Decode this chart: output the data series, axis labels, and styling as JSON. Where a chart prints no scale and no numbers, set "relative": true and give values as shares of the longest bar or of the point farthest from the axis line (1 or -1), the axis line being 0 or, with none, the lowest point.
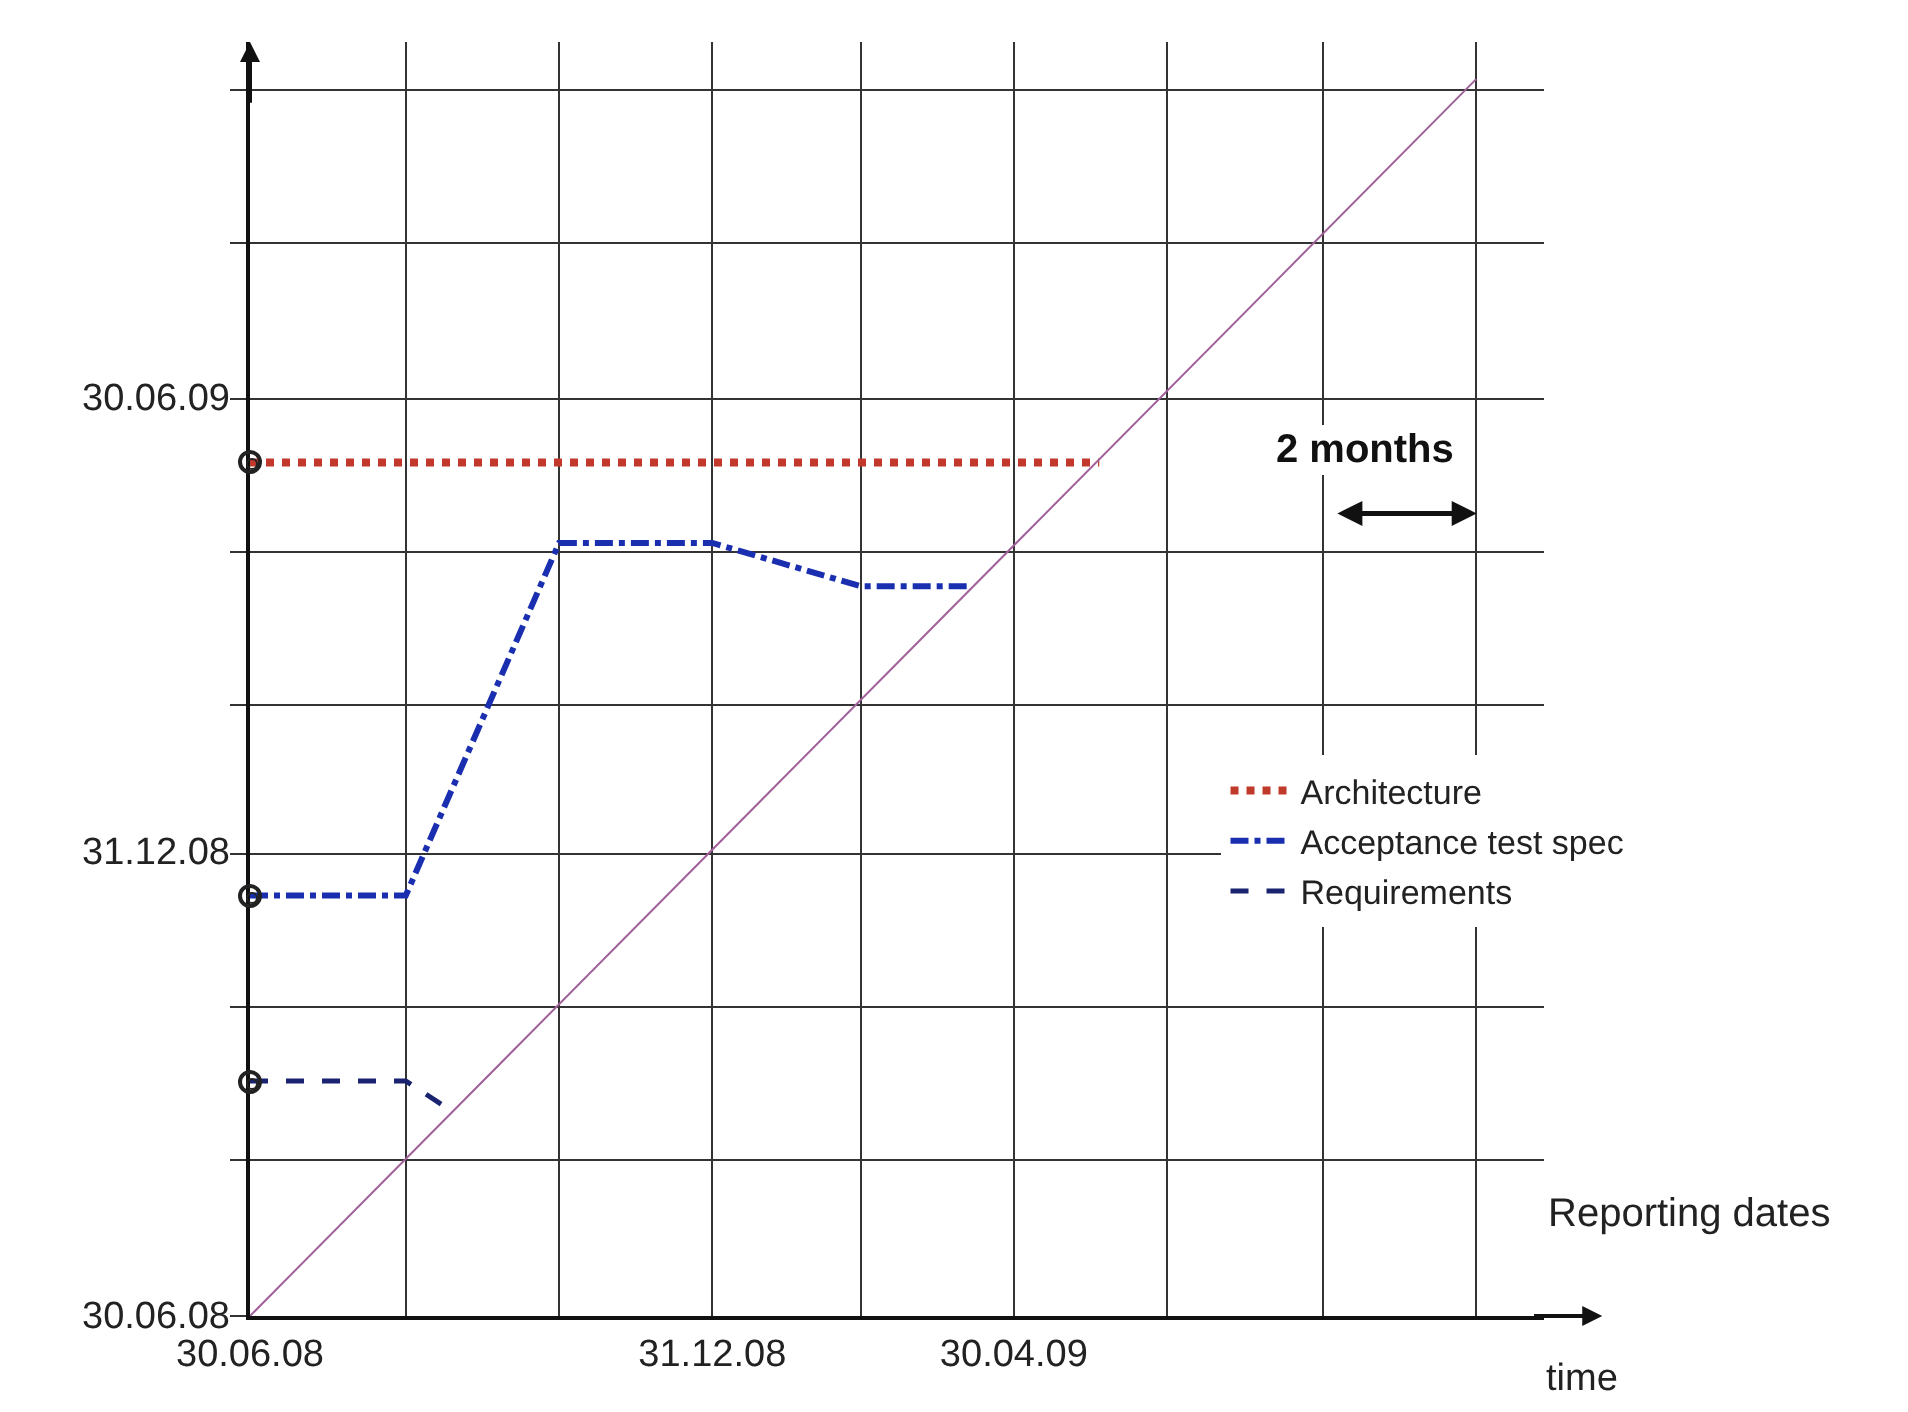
{
  "chart_data": {
    "type": "line",
    "xlabel": "time",
    "relative": true,
    "annotations": [
      "2 months",
      "Reporting dates",
      "30.06.08",
      "31.12.08",
      "30.06.09"
    ],
    "xlim": [
      "2008-06-30",
      "2009-11-27"
    ],
    "xticks": [
      {
        "value": "2008-06-30",
        "label": "30.06.08"
      },
      {
        "value": "2008-08-31",
        "label": null
      },
      {
        "value": "2008-10-31",
        "label": null
      },
      {
        "value": "2008-12-31",
        "label": "31.12.08"
      },
      {
        "value": "2009-02-28",
        "label": null
      },
      {
        "value": "2009-04-30",
        "label": "30.04.09"
      },
      {
        "value": "2009-06-30",
        "label": null
      },
      {
        "value": "2009-08-31",
        "label": null
      },
      {
        "value": "2009-10-31",
        "label": null
      }
    ],
    "grid": true,
    "legend": "right",
    "series": [
      {
        "name": "Architecture",
        "color": "#c0392b",
        "line_style": "dotted",
        "x": [
          "2008-06-30",
          "2008-08-31",
          "2008-10-31",
          "2008-12-31",
          "2009-02-28",
          "2009-04-30",
          "2009-06-03"
        ],
        "values": [
          0.69,
          0.69,
          0.69,
          0.69,
          0.69,
          0.69,
          0.69
        ]
      },
      {
        "name": "Acceptance test spec",
        "color": "#1a2fb0",
        "line_style": "dashdot",
        "x": [
          "2008-06-30",
          "2008-08-31",
          "2008-10-31",
          "2008-12-31",
          "2009-02-28",
          "2009-04-12"
        ],
        "values": [
          0.34,
          0.34,
          0.625,
          0.625,
          0.59,
          0.59
        ]
      },
      {
        "name": "Requirements",
        "color": "#1a2370",
        "line_style": "dashed",
        "x": [
          "2008-06-30",
          "2008-08-31",
          "2008-09-15"
        ],
        "values": [
          0.19,
          0.19,
          0.17
        ]
      },
      {
        "color": "#a0609a",
        "line_style": "solid",
        "x": [
          "2008-06-30",
          "2009-10-31"
        ],
        "values": [
          0,
          1
        ]
      }
    ]
  }
}
